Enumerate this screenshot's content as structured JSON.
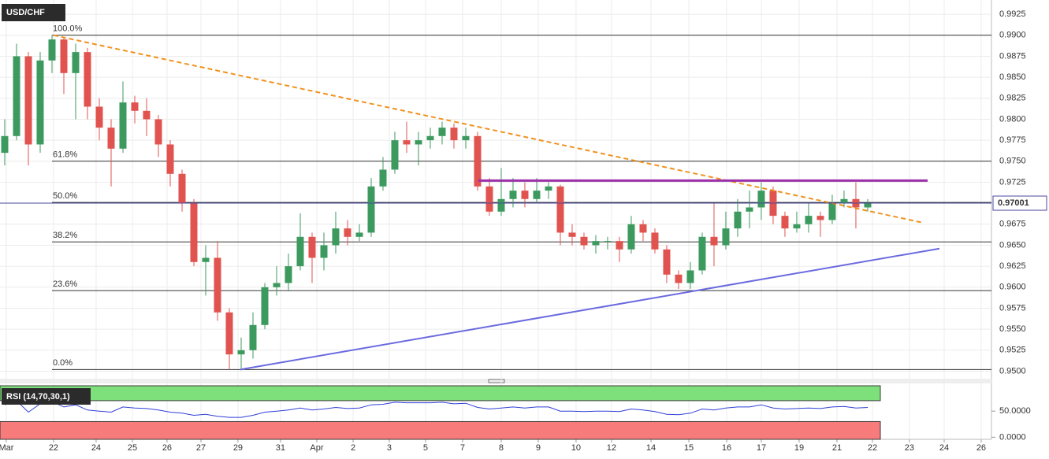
{
  "chart_data": {
    "type": "candlestick",
    "title": "USD/CHF",
    "up_color": "#3c9a5f",
    "down_color": "#e0534f",
    "open": [
      0.976,
      0.978,
      0.9875,
      0.977,
      0.987,
      0.9895,
      0.9855,
      0.988,
      0.9815,
      0.979,
      0.9765,
      0.982,
      0.981,
      0.98,
      0.977,
      0.9735,
      0.97,
      0.963,
      0.9635,
      0.957,
      0.952,
      0.9525,
      0.9555,
      0.96,
      0.9605,
      0.9625,
      0.966,
      0.9635,
      0.965,
      0.967,
      0.966,
      0.9665,
      0.972,
      0.974,
      0.9775,
      0.977,
      0.9775,
      0.978,
      0.979,
      0.9775,
      0.978,
      0.972,
      0.969,
      0.9705,
      0.9715,
      0.9705,
      0.9715,
      0.972,
      0.9665,
      0.966,
      0.965,
      0.9655,
      0.9655,
      0.9645,
      0.9675,
      0.9665,
      0.9645,
      0.9615,
      0.9605,
      0.962,
      0.966,
      0.965,
      0.967,
      0.969,
      0.9695,
      0.9715,
      0.9685,
      0.967,
      0.9675,
      0.9685,
      0.968,
      0.97,
      0.9705,
      0.9695
    ],
    "high": [
      0.98,
      0.989,
      0.988,
      0.988,
      0.99,
      0.9898,
      0.989,
      0.9885,
      0.9825,
      0.98,
      0.9845,
      0.9828,
      0.9825,
      0.9805,
      0.9775,
      0.974,
      0.9705,
      0.965,
      0.9655,
      0.9575,
      0.954,
      0.957,
      0.9605,
      0.9625,
      0.964,
      0.9688,
      0.9665,
      0.9665,
      0.969,
      0.968,
      0.9675,
      0.973,
      0.9755,
      0.9785,
      0.9797,
      0.9785,
      0.979,
      0.9797,
      0.9795,
      0.979,
      0.9785,
      0.973,
      0.9742,
      0.973,
      0.9725,
      0.973,
      0.9725,
      0.9722,
      0.9675,
      0.9665,
      0.9662,
      0.966,
      0.966,
      0.9685,
      0.968,
      0.967,
      0.965,
      0.962,
      0.963,
      0.9665,
      0.97,
      0.969,
      0.9705,
      0.9715,
      0.9725,
      0.972,
      0.969,
      0.969,
      0.97,
      0.969,
      0.971,
      0.9715,
      0.9725,
      0.9705
    ],
    "low": [
      0.9745,
      0.9775,
      0.9745,
      0.976,
      0.9855,
      0.983,
      0.98,
      0.98,
      0.9775,
      0.972,
      0.976,
      0.9795,
      0.978,
      0.9755,
      0.972,
      0.969,
      0.9625,
      0.959,
      0.956,
      0.9502,
      0.9502,
      0.9515,
      0.955,
      0.959,
      0.9595,
      0.962,
      0.9605,
      0.962,
      0.964,
      0.965,
      0.9655,
      0.966,
      0.9715,
      0.9735,
      0.976,
      0.9745,
      0.9765,
      0.977,
      0.9765,
      0.9765,
      0.9715,
      0.9685,
      0.9685,
      0.9695,
      0.9695,
      0.97,
      0.9705,
      0.965,
      0.965,
      0.9645,
      0.964,
      0.9645,
      0.963,
      0.964,
      0.9655,
      0.964,
      0.9605,
      0.9598,
      0.9598,
      0.9615,
      0.9625,
      0.9645,
      0.966,
      0.967,
      0.968,
      0.9675,
      0.966,
      0.9665,
      0.9665,
      0.966,
      0.9675,
      0.9695,
      0.967,
      0.969
    ],
    "close": [
      0.978,
      0.9875,
      0.977,
      0.987,
      0.9895,
      0.9855,
      0.988,
      0.9815,
      0.979,
      0.9765,
      0.982,
      0.981,
      0.98,
      0.977,
      0.9735,
      0.97,
      0.963,
      0.9635,
      0.957,
      0.952,
      0.9525,
      0.9555,
      0.96,
      0.9605,
      0.9625,
      0.966,
      0.9635,
      0.965,
      0.967,
      0.966,
      0.9665,
      0.972,
      0.974,
      0.9775,
      0.977,
      0.9775,
      0.978,
      0.979,
      0.9775,
      0.978,
      0.972,
      0.969,
      0.9705,
      0.9715,
      0.9705,
      0.9715,
      0.972,
      0.9665,
      0.966,
      0.965,
      0.9655,
      0.9655,
      0.9645,
      0.9675,
      0.9665,
      0.9645,
      0.9615,
      0.9605,
      0.962,
      0.966,
      0.965,
      0.967,
      0.969,
      0.9695,
      0.9715,
      0.9685,
      0.967,
      0.9675,
      0.9685,
      0.968,
      0.97,
      0.9705,
      0.9695,
      0.97
    ],
    "ylim": [
      0.9492,
      0.9942
    ],
    "yticks": [
      {
        "value": 0.95,
        "label": "0.9500"
      },
      {
        "value": 0.9525,
        "label": "0.9525"
      },
      {
        "value": 0.955,
        "label": "0.9550"
      },
      {
        "value": 0.9575,
        "label": "0.9575"
      },
      {
        "value": 0.96,
        "label": "0.9600"
      },
      {
        "value": 0.9625,
        "label": "0.9625"
      },
      {
        "value": 0.965,
        "label": "0.9650"
      },
      {
        "value": 0.9675,
        "label": "0.9675"
      },
      {
        "value": 0.97,
        "label": "0.9700"
      },
      {
        "value": 0.9725,
        "label": "0.9725"
      },
      {
        "value": 0.975,
        "label": "0.9750"
      },
      {
        "value": 0.9775,
        "label": "0.9775"
      },
      {
        "value": 0.98,
        "label": "0.9800"
      },
      {
        "value": 0.9825,
        "label": "0.9825"
      },
      {
        "value": 0.985,
        "label": "0.9850"
      },
      {
        "value": 0.9875,
        "label": "0.9875"
      },
      {
        "value": 0.99,
        "label": "0.9900"
      },
      {
        "value": 0.9925,
        "label": "0.9925"
      }
    ],
    "xlim": [
      -0.4,
      83.47
    ],
    "xticks": [
      {
        "value": 0.13,
        "label": "Mar"
      },
      {
        "value": 4.13,
        "label": "22"
      },
      {
        "value": 7.73,
        "label": "24"
      },
      {
        "value": 10.8,
        "label": "25"
      },
      {
        "value": 13.73,
        "label": "26"
      },
      {
        "value": 16.6,
        "label": "27"
      },
      {
        "value": 19.73,
        "label": "29"
      },
      {
        "value": 23.33,
        "label": "31"
      },
      {
        "value": 26.4,
        "label": "Apr"
      },
      {
        "value": 29.47,
        "label": "2"
      },
      {
        "value": 32.53,
        "label": "3"
      },
      {
        "value": 35.6,
        "label": "5"
      },
      {
        "value": 38.73,
        "label": "7"
      },
      {
        "value": 42,
        "label": "8"
      },
      {
        "value": 45.13,
        "label": "9"
      },
      {
        "value": 48.33,
        "label": "10"
      },
      {
        "value": 51.33,
        "label": "12"
      },
      {
        "value": 54.67,
        "label": "14"
      },
      {
        "value": 57.87,
        "label": "15"
      },
      {
        "value": 61.07,
        "label": "16"
      },
      {
        "value": 64,
        "label": "17"
      },
      {
        "value": 67.2,
        "label": "19"
      },
      {
        "value": 70.4,
        "label": "21"
      },
      {
        "value": 73.4,
        "label": "22"
      },
      {
        "value": 76.53,
        "label": "23"
      },
      {
        "value": 79.47,
        "label": "24"
      },
      {
        "value": 82.6,
        "label": "26"
      }
    ],
    "grid": true,
    "fib_levels": [
      {
        "label": "100.0%",
        "price": 0.99
      },
      {
        "label": "61.8%",
        "price": 0.975
      },
      {
        "label": "50.0%",
        "price": 0.9701
      },
      {
        "label": "38.2%",
        "price": 0.9654
      },
      {
        "label": "23.6%",
        "price": 0.9596
      },
      {
        "label": "0.0%",
        "price": 0.9502
      }
    ],
    "trend_lines": [
      {
        "color": "#f0921e",
        "dashed": true,
        "x": [
          4.13,
          77.6
        ],
        "y": [
          0.99,
          0.9677
        ]
      },
      {
        "color": "#9b30a8",
        "dashed": false,
        "x": [
          40.07,
          78.07
        ],
        "y": [
          0.9727,
          0.9727
        ]
      },
      {
        "color": "#6a6ae0",
        "dashed": false,
        "x": [
          19.93,
          79.07
        ],
        "y": [
          0.9502,
          0.9646
        ]
      }
    ],
    "last_price": {
      "value": 0.97001,
      "label": "0.97001"
    },
    "rsi": {
      "label": "RSI (14,70,30,1)",
      "color": "#2f3fd8",
      "upper": 70,
      "lower": 30,
      "ylim": [
        -4,
        100
      ],
      "yticks": [
        {
          "value": 50,
          "label": "50.0000"
        },
        {
          "value": 0,
          "label": "0.0000"
        }
      ],
      "values": [
        62,
        70,
        48,
        64,
        68,
        58,
        62,
        52,
        50,
        48,
        58,
        56,
        55,
        52,
        48,
        46,
        42,
        44,
        40,
        38,
        38,
        42,
        48,
        50,
        52,
        56,
        52,
        54,
        57,
        55,
        56,
        62,
        63,
        67,
        66,
        66,
        66,
        67,
        64,
        65,
        57,
        54,
        56,
        58,
        56,
        58,
        58,
        50,
        50,
        49,
        50,
        50,
        49,
        54,
        52,
        49,
        44,
        43,
        46,
        54,
        52,
        56,
        58,
        58,
        62,
        56,
        54,
        55,
        56,
        55,
        58,
        59,
        56,
        57
      ]
    }
  }
}
